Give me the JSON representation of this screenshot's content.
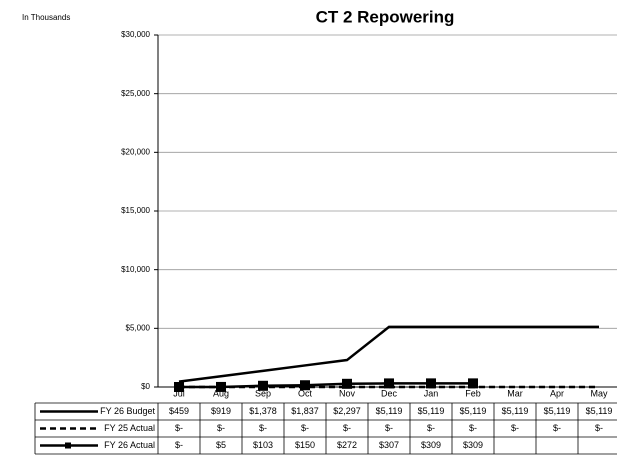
{
  "chart_data": {
    "type": "line",
    "title": "CT 2 Repowering",
    "subtitle": "In Thousands",
    "categories": [
      "Jul",
      "Aug",
      "Sep",
      "Oct",
      "Nov",
      "Dec",
      "Jan",
      "Feb",
      "Mar",
      "Apr",
      "May"
    ],
    "series": [
      {
        "name": "FY 26 Budget",
        "color": "#000000",
        "line_style": "solid",
        "marker": "none",
        "values": [
          459,
          919,
          1378,
          1837,
          2297,
          5119,
          5119,
          5119,
          5119,
          5119,
          5119
        ],
        "value_labels": [
          "$459",
          "$919",
          "$1,378",
          "$1,837",
          "$2,297",
          "$5,119",
          "$5,119",
          "$5,119",
          "$5,119",
          "$5,119",
          "$5,119"
        ]
      },
      {
        "name": "FY 25 Actual",
        "color": "#000000",
        "line_style": "dashed",
        "marker": "none",
        "values": [
          0,
          0,
          0,
          0,
          0,
          0,
          0,
          0,
          0,
          0,
          0
        ],
        "value_labels": [
          "$-",
          "$-",
          "$-",
          "$-",
          "$-",
          "$-",
          "$-",
          "$-",
          "$-",
          "$-",
          "$-"
        ]
      },
      {
        "name": "FY 26 Actual",
        "color": "#000000",
        "line_style": "solid",
        "marker": "square",
        "values": [
          0,
          5,
          103,
          150,
          272,
          307,
          309,
          309,
          null,
          null,
          null
        ],
        "value_labels": [
          "$-",
          "$5",
          "$103",
          "$150",
          "$272",
          "$307",
          "$309",
          "$309",
          null,
          null,
          null
        ]
      }
    ],
    "ylim": [
      0,
      30000
    ],
    "yticks": [
      {
        "value": 0,
        "label": "$0"
      },
      {
        "value": 5000,
        "label": "$5,000"
      },
      {
        "value": 10000,
        "label": "$10,000"
      },
      {
        "value": 15000,
        "label": "$15,000"
      },
      {
        "value": 20000,
        "label": "$20,000"
      },
      {
        "value": 25000,
        "label": "$25,000"
      },
      {
        "value": 30000,
        "label": "$30,000"
      }
    ],
    "grid": true
  }
}
